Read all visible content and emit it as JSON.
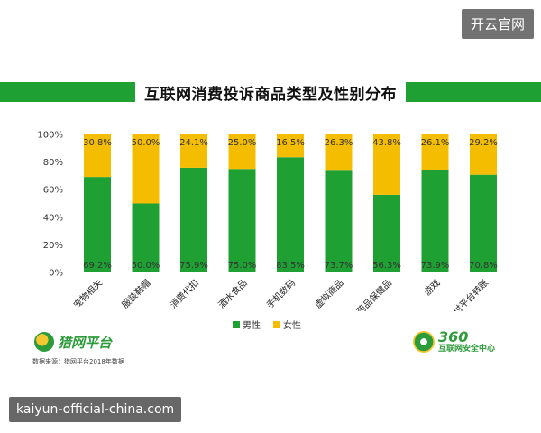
{
  "watermark_top": "开云官网",
  "watermark_bottom": "kaiyun-official-china.com",
  "title": "互联网消费投诉商品类型及性别分布",
  "colors": {
    "male": "#1fa033",
    "female": "#f5bd00",
    "title_bar": "#1fa033"
  },
  "chart_data": {
    "type": "bar",
    "stacked": true,
    "percent": true,
    "title": "互联网消费投诉商品类型及性别分布",
    "categories": [
      "宠物相关",
      "服装鞋帽",
      "消费代扣",
      "酒水食品",
      "手机数码",
      "虚拟商品",
      "药品保健品",
      "游戏",
      "支付平台转账"
    ],
    "series": [
      {
        "name": "男性",
        "color": "#1fa033",
        "values": [
          69.2,
          50.0,
          75.9,
          75.0,
          83.5,
          73.7,
          56.3,
          73.9,
          70.8
        ],
        "labels": [
          "69.2%",
          "50.0%",
          "75.9%",
          "75.0%",
          "83.5%",
          "73.7%",
          "56.3%",
          "73.9%",
          "70.8%"
        ]
      },
      {
        "name": "女性",
        "color": "#f5bd00",
        "values": [
          30.8,
          50.0,
          24.1,
          25.0,
          16.5,
          26.3,
          43.8,
          26.1,
          29.2
        ],
        "labels": [
          "30.8%",
          "50.0%",
          "24.1%",
          "25.0%",
          "16.5%",
          "26.3%",
          "43.8%",
          "26.1%",
          "29.2%"
        ]
      }
    ],
    "ylim": [
      0,
      100
    ],
    "yticks": [
      "0%",
      "20%",
      "40%",
      "60%",
      "80%",
      "100%"
    ],
    "xlabel": "",
    "ylabel": "",
    "legend": "bottom-center"
  },
  "legend": {
    "male": "男性",
    "female": "女性"
  },
  "logo_left": {
    "name": "猎网平台"
  },
  "source_note": "数据来源：猎网平台2018年数据",
  "logo_right": {
    "num": "360",
    "sub": "互联网安全中心"
  }
}
